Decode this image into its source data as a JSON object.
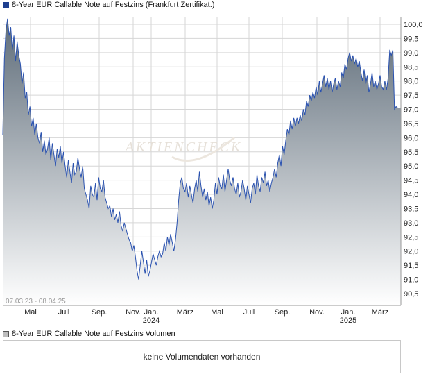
{
  "legend": {
    "main_label": "8-Year EUR Callable Note auf Festzins (Frankfurt Zertifikat.)",
    "volume_label": "8-Year EUR Callable Note auf Festzins Volumen"
  },
  "range_label": "07.03.23 - 08.04.25",
  "watermark": "AKTIENCHECK",
  "volume_message": "keine Volumendaten vorhanden",
  "colors": {
    "line": "#2a52b0",
    "fill_top": "#5e6c79",
    "fill_bottom": "#ffffff",
    "grid": "#d6d6d6"
  },
  "chart_data": {
    "type": "area",
    "title": "8-Year EUR Callable Note auf Festzins (Frankfurt Zertifikat.)",
    "ylim": [
      90.1,
      100.4
    ],
    "y_ticks": [
      "100,0",
      "99,5",
      "99,0",
      "98,5",
      "98,0",
      "97,5",
      "97,0",
      "96,5",
      "96,0",
      "95,5",
      "95,0",
      "94,5",
      "94,0",
      "93,5",
      "93,0",
      "92,5",
      "92,0",
      "91,5",
      "91,0",
      "90,5"
    ],
    "x_ticks": [
      {
        "label": "Mai",
        "year": ""
      },
      {
        "label": "Juli",
        "year": ""
      },
      {
        "label": "Sep.",
        "year": ""
      },
      {
        "label": "Nov.",
        "year": ""
      },
      {
        "label": "Jan.",
        "year": "2024"
      },
      {
        "label": "März",
        "year": ""
      },
      {
        "label": "Mai",
        "year": ""
      },
      {
        "label": "Juli",
        "year": ""
      },
      {
        "label": "Sep.",
        "year": ""
      },
      {
        "label": "Nov.",
        "year": ""
      },
      {
        "label": "Jan.",
        "year": "2025"
      },
      {
        "label": "März",
        "year": ""
      }
    ],
    "dates": [
      "2023-03-07",
      "2023-04-01",
      "2023-05-01",
      "2023-06-01",
      "2023-07-01",
      "2023-08-01",
      "2023-09-01",
      "2023-10-01",
      "2023-11-01",
      "2023-12-01",
      "2024-01-01",
      "2024-02-01",
      "2024-03-01",
      "2024-04-01",
      "2024-05-01",
      "2024-06-01",
      "2024-07-01",
      "2024-08-01",
      "2024-09-01",
      "2024-10-01",
      "2024-11-01",
      "2024-12-01",
      "2025-01-01",
      "2025-02-01",
      "2025-03-01",
      "2025-04-08"
    ],
    "series": [
      {
        "values": [
          [
            0,
            96.1
          ],
          [
            1,
            98.8
          ],
          [
            2,
            99.8
          ],
          [
            3,
            100.2
          ],
          [
            4,
            99.6
          ],
          [
            5,
            99.9
          ],
          [
            6,
            99.1
          ],
          [
            7,
            99.6
          ],
          [
            8,
            98.7
          ],
          [
            9,
            99.4
          ],
          [
            10,
            98.9
          ],
          [
            11,
            98.6
          ],
          [
            12,
            97.9
          ],
          [
            13,
            98.3
          ],
          [
            14,
            97.4
          ],
          [
            15,
            97.6
          ],
          [
            16,
            96.8
          ],
          [
            17,
            97.1
          ],
          [
            18,
            96.4
          ],
          [
            19,
            96.7
          ],
          [
            20,
            96.1
          ],
          [
            21,
            96.5
          ],
          [
            22,
            96.0
          ],
          [
            23,
            95.8
          ],
          [
            24,
            96.2
          ],
          [
            25,
            95.5
          ],
          [
            26,
            95.9
          ],
          [
            27,
            95.4
          ],
          [
            28,
            95.6
          ],
          [
            29,
            96.0
          ],
          [
            30,
            95.2
          ],
          [
            31,
            95.8
          ],
          [
            32,
            95.4
          ],
          [
            33,
            95.0
          ],
          [
            34,
            95.6
          ],
          [
            35,
            95.3
          ],
          [
            36,
            95.7
          ],
          [
            37,
            95.1
          ],
          [
            38,
            95.5
          ],
          [
            39,
            95.0
          ],
          [
            40,
            94.6
          ],
          [
            41,
            95.2
          ],
          [
            42,
            94.8
          ],
          [
            43,
            94.4
          ],
          [
            44,
            95.1
          ],
          [
            45,
            94.7
          ],
          [
            46,
            94.8
          ],
          [
            47,
            95.3
          ],
          [
            48,
            94.9
          ],
          [
            49,
            94.6
          ],
          [
            50,
            95.0
          ],
          [
            51,
            94.2
          ],
          [
            52,
            94.0
          ],
          [
            53,
            93.8
          ],
          [
            54,
            93.5
          ],
          [
            55,
            94.3
          ],
          [
            56,
            94.0
          ],
          [
            57,
            93.9
          ],
          [
            58,
            94.4
          ],
          [
            59,
            93.8
          ],
          [
            60,
            94.6
          ],
          [
            61,
            94.2
          ],
          [
            62,
            94.1
          ],
          [
            63,
            94.5
          ],
          [
            64,
            93.9
          ],
          [
            65,
            93.7
          ],
          [
            66,
            93.5
          ],
          [
            67,
            93.6
          ],
          [
            68,
            93.2
          ],
          [
            69,
            93.5
          ],
          [
            70,
            93.1
          ],
          [
            71,
            93.3
          ],
          [
            72,
            93.0
          ],
          [
            73,
            93.4
          ],
          [
            74,
            92.9
          ],
          [
            75,
            92.7
          ],
          [
            76,
            93.0
          ],
          [
            77,
            92.8
          ],
          [
            78,
            92.6
          ],
          [
            79,
            92.4
          ],
          [
            80,
            92.3
          ],
          [
            81,
            92.0
          ],
          [
            82,
            92.2
          ],
          [
            83,
            91.8
          ],
          [
            84,
            91.3
          ],
          [
            85,
            91.0
          ],
          [
            86,
            91.5
          ],
          [
            87,
            92.0
          ],
          [
            88,
            91.6
          ],
          [
            89,
            91.2
          ],
          [
            90,
            91.7
          ],
          [
            91,
            91.1
          ],
          [
            92,
            91.3
          ],
          [
            93,
            91.6
          ],
          [
            94,
            91.9
          ],
          [
            95,
            91.7
          ],
          [
            96,
            91.5
          ],
          [
            97,
            91.8
          ],
          [
            98,
            92.0
          ],
          [
            99,
            91.8
          ],
          [
            100,
            91.9
          ],
          [
            101,
            92.3
          ],
          [
            102,
            92.0
          ],
          [
            103,
            92.5
          ],
          [
            104,
            92.2
          ],
          [
            105,
            92.6
          ],
          [
            106,
            92.3
          ],
          [
            107,
            92.0
          ],
          [
            108,
            92.4
          ],
          [
            109,
            93.0
          ],
          [
            110,
            93.8
          ],
          [
            111,
            94.4
          ],
          [
            112,
            94.6
          ],
          [
            113,
            94.2
          ],
          [
            114,
            94.1
          ],
          [
            115,
            94.4
          ],
          [
            116,
            93.9
          ],
          [
            117,
            94.3
          ],
          [
            118,
            94.0
          ],
          [
            119,
            93.7
          ],
          [
            120,
            94.2
          ],
          [
            121,
            94.5
          ],
          [
            122,
            94.1
          ],
          [
            123,
            94.8
          ],
          [
            124,
            94.3
          ],
          [
            125,
            93.9
          ],
          [
            126,
            94.2
          ],
          [
            127,
            93.8
          ],
          [
            128,
            94.1
          ],
          [
            129,
            93.6
          ],
          [
            130,
            93.9
          ],
          [
            131,
            93.5
          ],
          [
            132,
            93.8
          ],
          [
            133,
            94.4
          ],
          [
            134,
            94.0
          ],
          [
            135,
            94.6
          ],
          [
            136,
            94.3
          ],
          [
            137,
            94.2
          ],
          [
            138,
            94.7
          ],
          [
            139,
            94.1
          ],
          [
            140,
            94.5
          ],
          [
            141,
            94.9
          ],
          [
            142,
            94.5
          ],
          [
            143,
            94.3
          ],
          [
            144,
            94.6
          ],
          [
            145,
            94.2
          ],
          [
            146,
            94.0
          ],
          [
            147,
            94.4
          ],
          [
            148,
            93.9
          ],
          [
            149,
            94.1
          ],
          [
            150,
            94.5
          ],
          [
            151,
            94.2
          ],
          [
            152,
            93.8
          ],
          [
            153,
            94.3
          ],
          [
            154,
            94.0
          ],
          [
            155,
            93.7
          ],
          [
            156,
            94.2
          ],
          [
            157,
            94.4
          ],
          [
            158,
            94.0
          ],
          [
            159,
            94.7
          ],
          [
            160,
            94.3
          ],
          [
            161,
            94.1
          ],
          [
            162,
            94.6
          ],
          [
            163,
            94.4
          ],
          [
            164,
            94.8
          ],
          [
            165,
            94.3
          ],
          [
            166,
            94.5
          ],
          [
            167,
            94.1
          ],
          [
            168,
            94.4
          ],
          [
            169,
            94.6
          ],
          [
            170,
            94.9
          ],
          [
            171,
            94.6
          ],
          [
            172,
            95.1
          ],
          [
            173,
            95.4
          ],
          [
            174,
            95.0
          ],
          [
            175,
            95.7
          ],
          [
            176,
            95.4
          ],
          [
            177,
            95.9
          ],
          [
            178,
            96.3
          ],
          [
            179,
            96.1
          ],
          [
            180,
            96.6
          ],
          [
            181,
            96.3
          ],
          [
            182,
            96.7
          ],
          [
            183,
            96.4
          ],
          [
            184,
            96.7
          ],
          [
            185,
            96.5
          ],
          [
            186,
            96.8
          ],
          [
            187,
            96.6
          ],
          [
            188,
            97.0
          ],
          [
            189,
            96.8
          ],
          [
            190,
            97.3
          ],
          [
            191,
            97.1
          ],
          [
            192,
            97.5
          ],
          [
            193,
            97.3
          ],
          [
            194,
            97.6
          ],
          [
            195,
            97.4
          ],
          [
            196,
            97.8
          ],
          [
            197,
            97.5
          ],
          [
            198,
            98.0
          ],
          [
            199,
            97.6
          ],
          [
            200,
            97.9
          ],
          [
            201,
            98.2
          ],
          [
            202,
            97.8
          ],
          [
            203,
            98.1
          ],
          [
            204,
            97.7
          ],
          [
            205,
            98.0
          ],
          [
            206,
            97.6
          ],
          [
            207,
            97.9
          ],
          [
            208,
            98.1
          ],
          [
            209,
            97.7
          ],
          [
            210,
            98.0
          ],
          [
            211,
            97.8
          ],
          [
            212,
            98.3
          ],
          [
            213,
            98.1
          ],
          [
            214,
            98.6
          ],
          [
            215,
            98.4
          ],
          [
            216,
            98.8
          ],
          [
            217,
            99.0
          ],
          [
            218,
            98.7
          ],
          [
            219,
            98.9
          ],
          [
            220,
            98.6
          ],
          [
            221,
            98.8
          ],
          [
            222,
            98.5
          ],
          [
            223,
            98.7
          ],
          [
            224,
            98.3
          ],
          [
            225,
            98.0
          ],
          [
            226,
            98.4
          ],
          [
            227,
            97.9
          ],
          [
            228,
            98.2
          ],
          [
            229,
            97.6
          ],
          [
            230,
            97.9
          ],
          [
            231,
            98.3
          ],
          [
            232,
            97.8
          ],
          [
            233,
            98.0
          ],
          [
            234,
            97.7
          ],
          [
            235,
            97.9
          ],
          [
            236,
            98.2
          ],
          [
            237,
            97.8
          ],
          [
            238,
            97.7
          ],
          [
            239,
            98.0
          ],
          [
            240,
            97.7
          ],
          [
            241,
            98.1
          ],
          [
            242,
            99.1
          ],
          [
            243,
            98.9
          ],
          [
            244,
            99.1
          ],
          [
            245,
            97.0
          ],
          [
            246,
            97.1
          ],
          [
            247,
            97.05
          ],
          [
            248,
            97.05
          ],
          [
            249,
            97.05
          ]
        ]
      }
    ]
  }
}
